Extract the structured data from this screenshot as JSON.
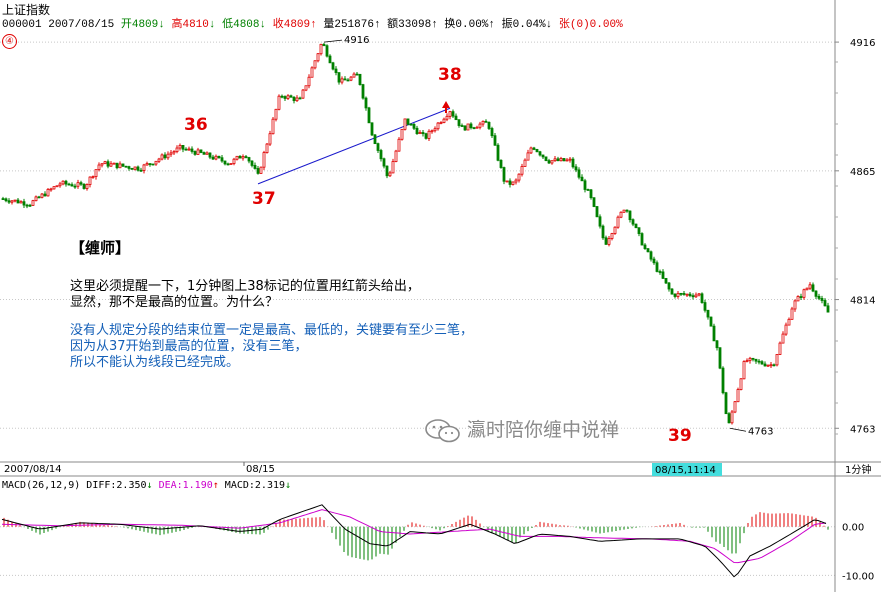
{
  "window": {
    "title": "上证指数",
    "marker": "④"
  },
  "quote": {
    "code": "000001",
    "date": "2007/08/15",
    "open": "开4809",
    "open_arrow": "↓",
    "high": "高4810",
    "high_arrow": "↓",
    "low": "低4808",
    "low_arrow": "↓",
    "close": "收4809",
    "close_arrow": "↑",
    "volume": "量251876",
    "volume_arrow": "↑",
    "amount": "额33098",
    "amount_arrow": "↑",
    "turnover": "换0.00%",
    "turnover_arrow": "↑",
    "amplitude": "振0.04%",
    "amplitude_arrow": "↓",
    "change": "张(0)0.00%"
  },
  "annotations": {
    "label_36": "36",
    "label_37": "37",
    "label_38": "38",
    "label_39": "39",
    "peak_value": "4916",
    "trough_value": "4763"
  },
  "notes": {
    "heading": "【缠师】",
    "line1": "这里必须提醒一下，1分钟图上38标记的位置用红箭头给出，",
    "line2": "显然，那不是最高的位置。为什么？",
    "line3": "没有人规定分段的结束位置一定是最高、最低的，关键要有至少三笔，",
    "line4": "因为从37开始到最高的位置，没有三笔，",
    "line5": "所以不能认为线段已经完成。"
  },
  "watermark": {
    "text": "瀛时陪你缠中说禅"
  },
  "time_axis": {
    "left_date": "2007/08/14",
    "mid_date": "08/15",
    "cursor_time": "08/15,11:14",
    "period": "1分钟"
  },
  "macd": {
    "label": "MACD(26,12,9)",
    "diff_label": "DIFF:2.350",
    "diff_arrow": "↓",
    "dea_label": "DEA:1.190",
    "dea_arrow": "↑",
    "macd_label": "MACD:2.319",
    "macd_arrow": "↓"
  },
  "colors": {
    "up": "#e00000",
    "down": "#008000",
    "segment_line": "#1a1acc",
    "dea_line": "#cc00cc",
    "diff_line": "#000000",
    "cursor_bg": "#44dddd"
  },
  "chart_data": [
    {
      "type": "candlestick",
      "title": "上证指数",
      "period": "1分钟",
      "y_ticks": [
        4916,
        4865,
        4814,
        4763
      ],
      "ylim": [
        4754,
        4920
      ],
      "x_labels": [
        "2007/08/14",
        "08/15"
      ],
      "grid": true,
      "close_path": [
        {
          "point": "start",
          "close": 4854
        },
        {
          "point": "36",
          "close": 4874
        },
        {
          "point": "37",
          "close": 4863
        },
        {
          "point": "high",
          "close": 4916
        },
        {
          "point": "pullback",
          "close": 4862
        },
        {
          "point": "38",
          "close": 4889
        },
        {
          "point": "decline",
          "close": 4815
        },
        {
          "point": "39",
          "close": 4763
        },
        {
          "point": "end",
          "close": 4809
        }
      ],
      "peak": 4916,
      "trough": 4763
    },
    {
      "type": "line",
      "title": "MACD(26,12,9)",
      "y_ticks": [
        0.0,
        -10.0
      ],
      "ylim": [
        -13,
        10
      ],
      "series": [
        {
          "name": "DIFF",
          "last": 2.35
        },
        {
          "name": "DEA",
          "last": 1.19
        },
        {
          "name": "MACD",
          "last": 2.319
        }
      ]
    }
  ]
}
